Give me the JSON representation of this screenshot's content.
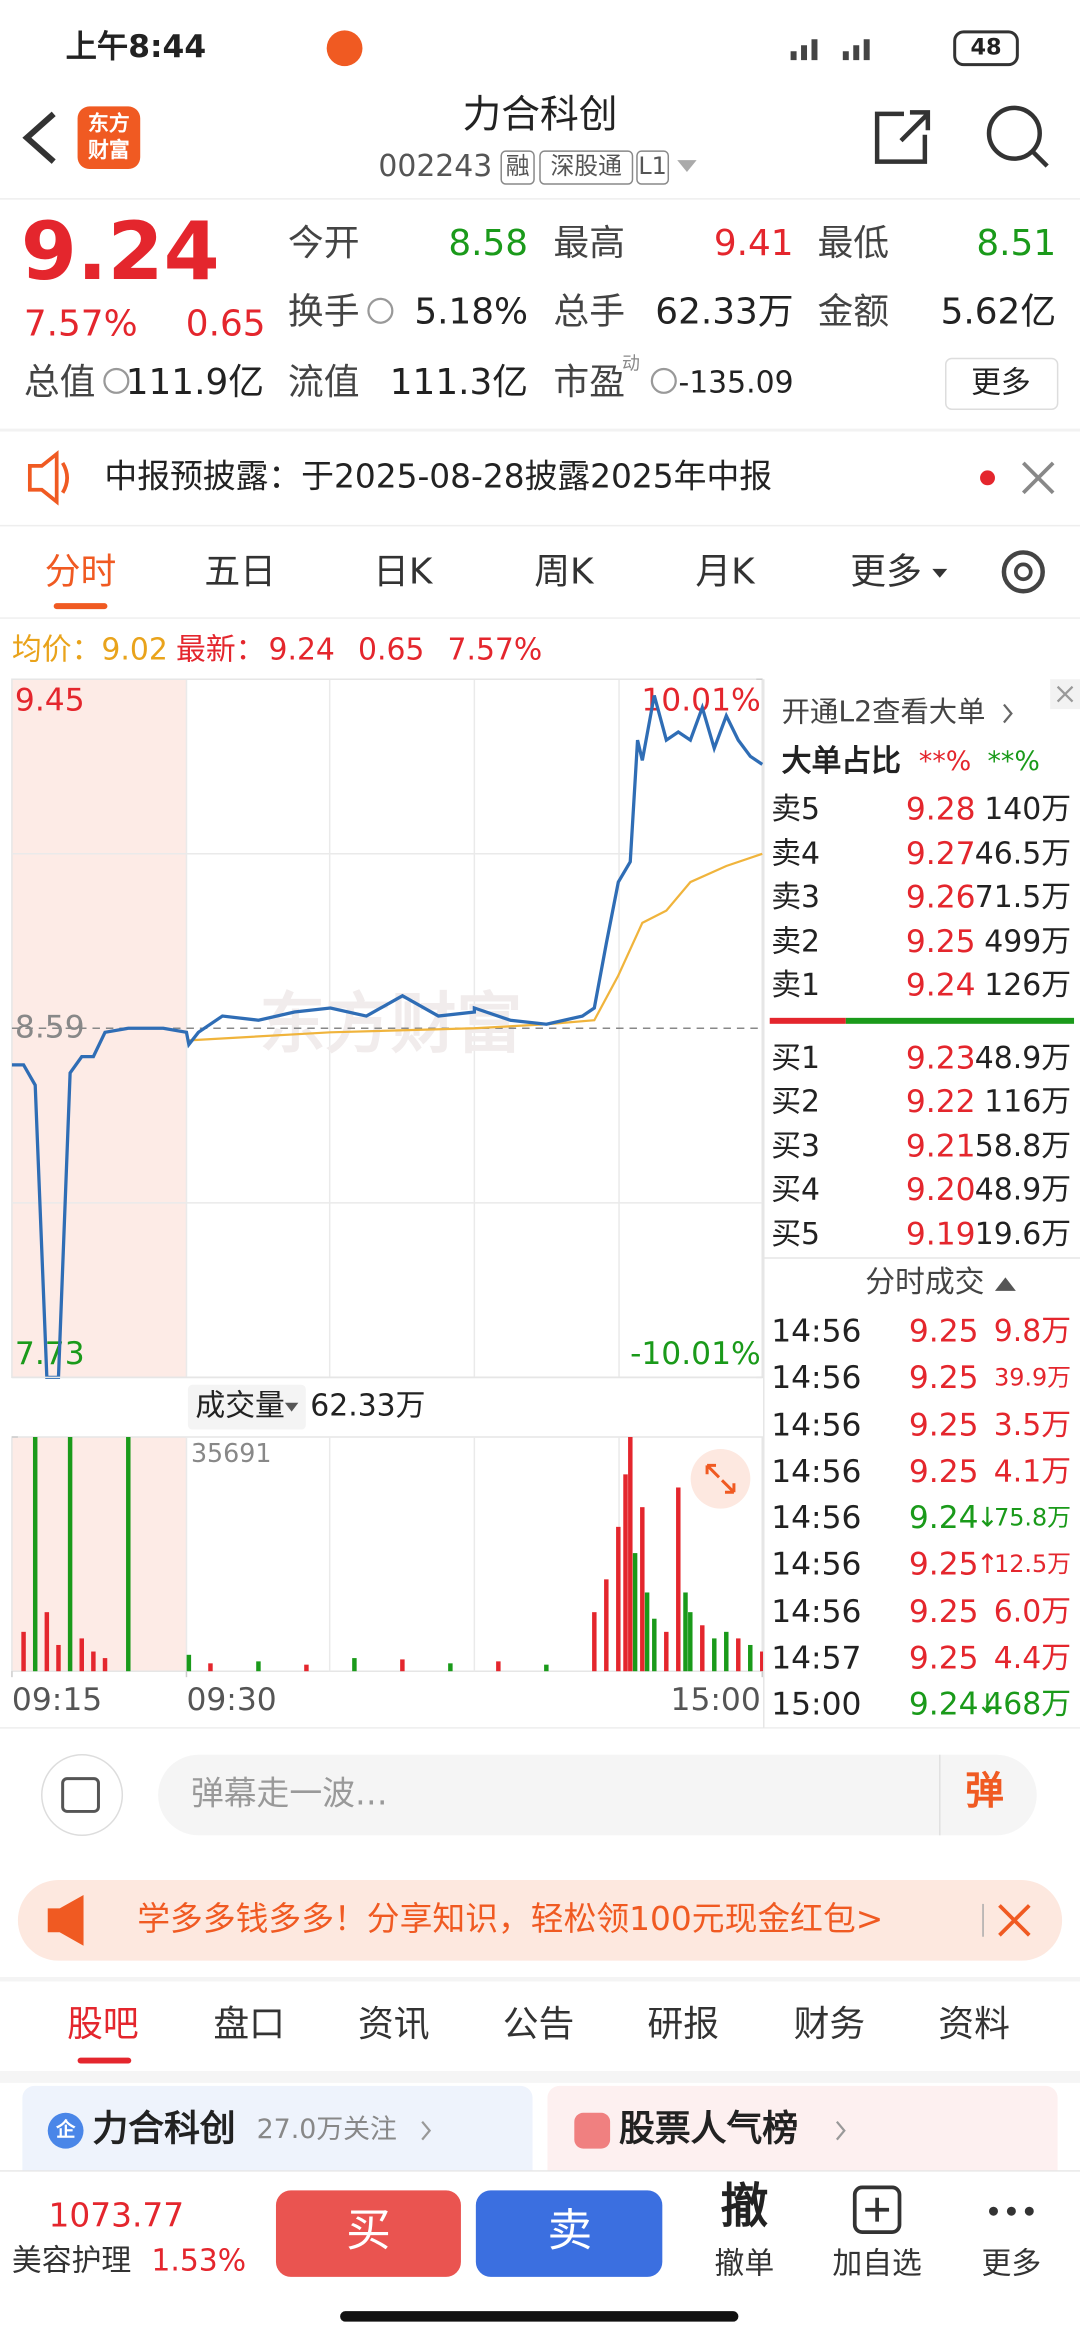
{
  "status_bar": {
    "time": "上午8:44",
    "battery": "48"
  },
  "header": {
    "logo": [
      "东方",
      "财富"
    ],
    "title": "力合科创",
    "code": "002243",
    "tags": [
      "融",
      "深股通",
      "L1"
    ]
  },
  "quote": {
    "price": "9.24",
    "change_pct": "7.57%",
    "change": "0.65",
    "pe_tag": "动",
    "more": "更多",
    "fields": [
      {
        "label": "今开",
        "value": "8.58",
        "color": "#1a9a1a"
      },
      {
        "label": "最高",
        "value": "9.41",
        "color": "#e4262d"
      },
      {
        "label": "最低",
        "value": "8.51",
        "color": "#1a9a1a"
      },
      {
        "label": "换手",
        "value": "5.18%",
        "color": "#222222"
      },
      {
        "label": "总手",
        "value": "62.33万",
        "color": "#222222"
      },
      {
        "label": "金额",
        "value": "5.62亿",
        "color": "#222222"
      },
      {
        "label": "总值",
        "value": "111.9亿",
        "color": "#222222"
      },
      {
        "label": "流值",
        "value": "111.3亿",
        "color": "#222222"
      },
      {
        "label": "市盈",
        "value": "-135.09",
        "color": "#222222"
      }
    ]
  },
  "notice": {
    "text": "中报预披露：于2025-08-28披露2025年中报"
  },
  "tabs": [
    "分时",
    "五日",
    "日K",
    "周K",
    "月K",
    "更多"
  ],
  "chart": {
    "avg_label": "均价：",
    "avg": "9.02",
    "latest_label": "最新：",
    "latest": "9.24",
    "change": "0.65",
    "change_pct": "7.57%",
    "ylim": [
      7.73,
      9.45
    ],
    "yticks": [
      9.45,
      8.59,
      7.73
    ],
    "y2lim": [
      -10.01,
      10.01
    ],
    "y2ticks": [
      {
        "value": 10.01,
        "label": "10.01%"
      },
      {
        "value": -10.01,
        "label": "-10.01%"
      }
    ],
    "xticks": [
      "09:15",
      "09:30",
      "15:00"
    ],
    "watermark": "东方财富",
    "price": {
      "color": "#2f6db5",
      "x": [
        "09:15",
        "09:16",
        "09:17",
        "09:18",
        "09:19",
        "09:20",
        "09:21",
        "09:22",
        "09:23",
        "09:25",
        "09:28",
        "09:30",
        "09:31",
        "09:35",
        "09:45",
        "10:00",
        "10:15",
        "10:30",
        "10:45",
        "11:00",
        "11:15",
        "11:30",
        "13:00",
        "13:15",
        "13:30",
        "13:45",
        "13:50",
        "13:55",
        "14:00",
        "14:05",
        "14:08",
        "14:10",
        "14:15",
        "14:20",
        "14:25",
        "14:30",
        "14:35",
        "14:40",
        "14:45",
        "14:50",
        "14:55",
        "15:00"
      ],
      "values": [
        8.5,
        8.5,
        8.45,
        7.73,
        7.73,
        8.48,
        8.52,
        8.52,
        8.58,
        8.59,
        8.59,
        8.58,
        8.55,
        8.58,
        8.62,
        8.61,
        8.63,
        8.64,
        8.62,
        8.67,
        8.62,
        8.63,
        8.64,
        8.61,
        8.6,
        8.62,
        8.64,
        8.8,
        8.95,
        9.0,
        9.3,
        9.25,
        9.41,
        9.3,
        9.32,
        9.3,
        9.38,
        9.28,
        9.36,
        9.3,
        9.26,
        9.24
      ]
    },
    "average": {
      "color": "#f0b43c",
      "x": [
        "09:30",
        "10:30",
        "11:30",
        "13:30",
        "13:50",
        "14:00",
        "14:10",
        "14:20",
        "14:30",
        "14:45",
        "15:00"
      ],
      "values": [
        8.56,
        8.58,
        8.59,
        8.6,
        8.61,
        8.72,
        8.85,
        8.88,
        8.95,
        8.99,
        9.02
      ]
    },
    "volume": {
      "label": "成交量",
      "total": "62.33万",
      "ylim": [
        0,
        35691
      ],
      "x": [
        "09:16",
        "09:17",
        "09:18",
        "09:19",
        "09:20",
        "09:21",
        "09:22",
        "09:23",
        "09:25",
        "09:31",
        "09:40",
        "10:00",
        "10:20",
        "10:40",
        "11:00",
        "11:20",
        "13:10",
        "13:30",
        "13:50",
        "13:55",
        "14:00",
        "14:03",
        "14:05",
        "14:07",
        "14:10",
        "14:12",
        "14:15",
        "14:20",
        "14:25",
        "14:28",
        "14:30",
        "14:35",
        "14:40",
        "14:45",
        "14:50",
        "14:55",
        "15:00"
      ],
      "values": [
        6000,
        35691,
        9000,
        4000,
        35691,
        5000,
        3000,
        2000,
        35691,
        2500,
        1200,
        1500,
        1000,
        2000,
        1800,
        1200,
        1500,
        1000,
        9000,
        14000,
        22000,
        30000,
        35691,
        18000,
        25000,
        12000,
        8000,
        6000,
        28000,
        12000,
        9000,
        7000,
        5000,
        6000,
        5000,
        4000,
        3000
      ],
      "colors": [
        "#e4262d",
        "#1a9a1a",
        "#e4262d",
        "#e4262d",
        "#1a9a1a",
        "#e4262d",
        "#e4262d",
        "#e4262d",
        "#1a9a1a",
        "#1a9a1a",
        "#e4262d",
        "#1a9a1a",
        "#e4262d",
        "#1a9a1a",
        "#e4262d",
        "#1a9a1a",
        "#e4262d",
        "#1a9a1a",
        "#e4262d",
        "#e4262d",
        "#e4262d",
        "#e4262d",
        "#e4262d",
        "#1a9a1a",
        "#e4262d",
        "#1a9a1a",
        "#1a9a1a",
        "#e4262d",
        "#e4262d",
        "#1a9a1a",
        "#1a9a1a",
        "#e4262d",
        "#1a9a1a",
        "#1a9a1a",
        "#e4262d",
        "#1a9a1a",
        "#e4262d"
      ]
    }
  },
  "order_book": {
    "l2": "开通L2查看大单",
    "ratio_label": "大单占比",
    "ratio_buy": "**%",
    "ratio_sell": "**%",
    "asks": [
      [
        "卖5",
        "9.28",
        "140万"
      ],
      [
        "卖4",
        "9.27",
        "46.5万"
      ],
      [
        "卖3",
        "9.26",
        "71.5万"
      ],
      [
        "卖2",
        "9.25",
        "499万"
      ],
      [
        "卖1",
        "9.24",
        "126万"
      ]
    ],
    "bids": [
      [
        "买1",
        "9.23",
        "48.9万"
      ],
      [
        "买2",
        "9.22",
        "116万"
      ],
      [
        "买3",
        "9.21",
        "58.8万"
      ],
      [
        "买4",
        "9.20",
        "48.9万"
      ],
      [
        "买5",
        "9.19",
        "19.6万"
      ]
    ],
    "trades_title": "分时成交",
    "trades": [
      {
        "time": "14:56",
        "price": "9.25",
        "volume": "9.8万"
      },
      {
        "time": "14:56",
        "price": "9.25",
        "volume": "39.9万"
      },
      {
        "time": "14:56",
        "price": "9.25",
        "volume": "3.5万"
      },
      {
        "time": "14:56",
        "price": "9.25",
        "volume": "4.1万"
      },
      {
        "time": "14:56",
        "price": "9.24",
        "arrow": "↓",
        "volume": "75.8万"
      },
      {
        "time": "14:56",
        "price": "9.25",
        "arrow": "↑",
        "volume": "12.5万"
      },
      {
        "time": "14:56",
        "price": "9.25",
        "volume": "6.0万"
      },
      {
        "time": "14:57",
        "price": "9.25",
        "volume": "4.4万"
      },
      {
        "time": "15:00",
        "price": "9.24",
        "arrow": "↓",
        "volume": "468万"
      }
    ]
  },
  "comment": {
    "placeholder": "弹幕走一波…",
    "button": "弹"
  },
  "banner": "学多多钱多多！分享知识，轻松领100元现金红包>",
  "bottom_tabs": [
    "股吧",
    "盘口",
    "资讯",
    "公告",
    "研报",
    "财务",
    "资料"
  ],
  "cards": [
    {
      "icon": "企",
      "title": "力合科创",
      "sub": "27.0万关注"
    },
    {
      "title": "股票人气榜"
    }
  ],
  "footer": {
    "index": "1073.77",
    "sector": "美容护理",
    "sector_change": "1.53%",
    "buy": "买",
    "sell": "卖",
    "actions": [
      {
        "icon": "撤",
        "label": "撤单"
      },
      {
        "label": "加自选"
      },
      {
        "label": "更多"
      }
    ]
  }
}
